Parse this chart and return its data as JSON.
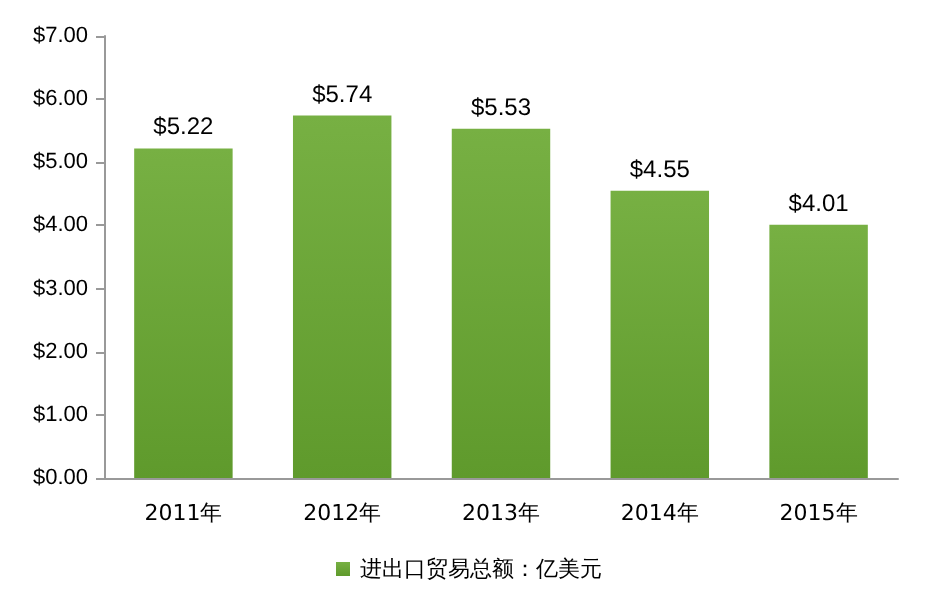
{
  "chart_data": {
    "type": "bar",
    "categories": [
      "2011年",
      "2012年",
      "2013年",
      "2014年",
      "2015年"
    ],
    "series": [
      {
        "name": "进出口贸易总额：亿美元",
        "color": "#77b043",
        "values": [
          5.22,
          5.74,
          5.53,
          4.55,
          4.01
        ],
        "value_labels": [
          "$5.22",
          "$5.74",
          "$5.53",
          "$4.55",
          "$4.01"
        ]
      }
    ],
    "ylim": [
      0,
      7
    ],
    "yticks": [
      {
        "value": 0,
        "label": "$0.00"
      },
      {
        "value": 1,
        "label": "$1.00"
      },
      {
        "value": 2,
        "label": "$2.00"
      },
      {
        "value": 3,
        "label": "$3.00"
      },
      {
        "value": 4,
        "label": "$4.00"
      },
      {
        "value": 5,
        "label": "$5.00"
      },
      {
        "value": 6,
        "label": "$6.00"
      },
      {
        "value": 7,
        "label": "$7.00"
      }
    ],
    "grid": false,
    "legend": "bottom"
  }
}
